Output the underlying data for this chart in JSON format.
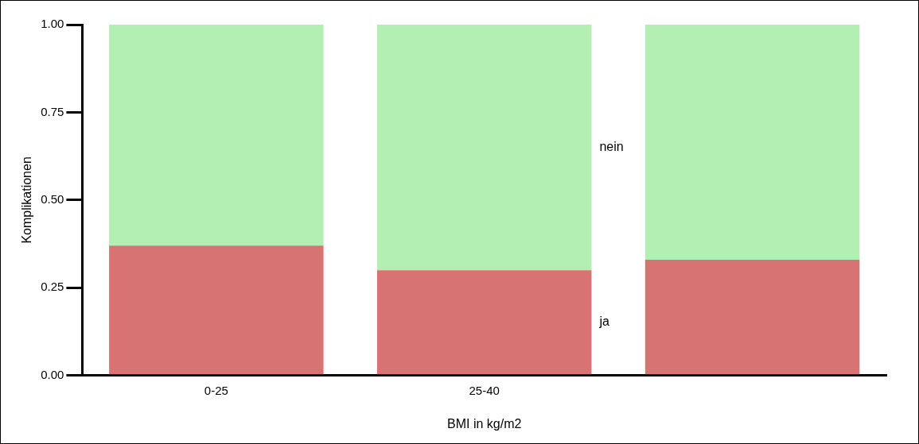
{
  "chart_data": {
    "type": "bar",
    "stacked": true,
    "xlabel": "BMI in kg/m2",
    "ylabel": "Komplikationen",
    "categories": [
      "0-25",
      "25-40",
      null
    ],
    "series": [
      {
        "name": "ja",
        "color": "#d87373",
        "values": [
          0.37,
          0.3,
          0.33
        ]
      },
      {
        "name": "nein",
        "color": "#b3eeb3",
        "values": [
          0.63,
          0.7,
          0.67
        ]
      }
    ],
    "ylim": [
      0,
      1
    ],
    "yticks": [
      {
        "value": 0,
        "label": "0.00"
      },
      {
        "value": 0.25,
        "label": "0.25"
      },
      {
        "value": 0.5,
        "label": "0.50"
      },
      {
        "value": 0.75,
        "label": "0.75"
      },
      {
        "value": 1,
        "label": "1.00"
      }
    ],
    "grid": false,
    "legend": false
  }
}
